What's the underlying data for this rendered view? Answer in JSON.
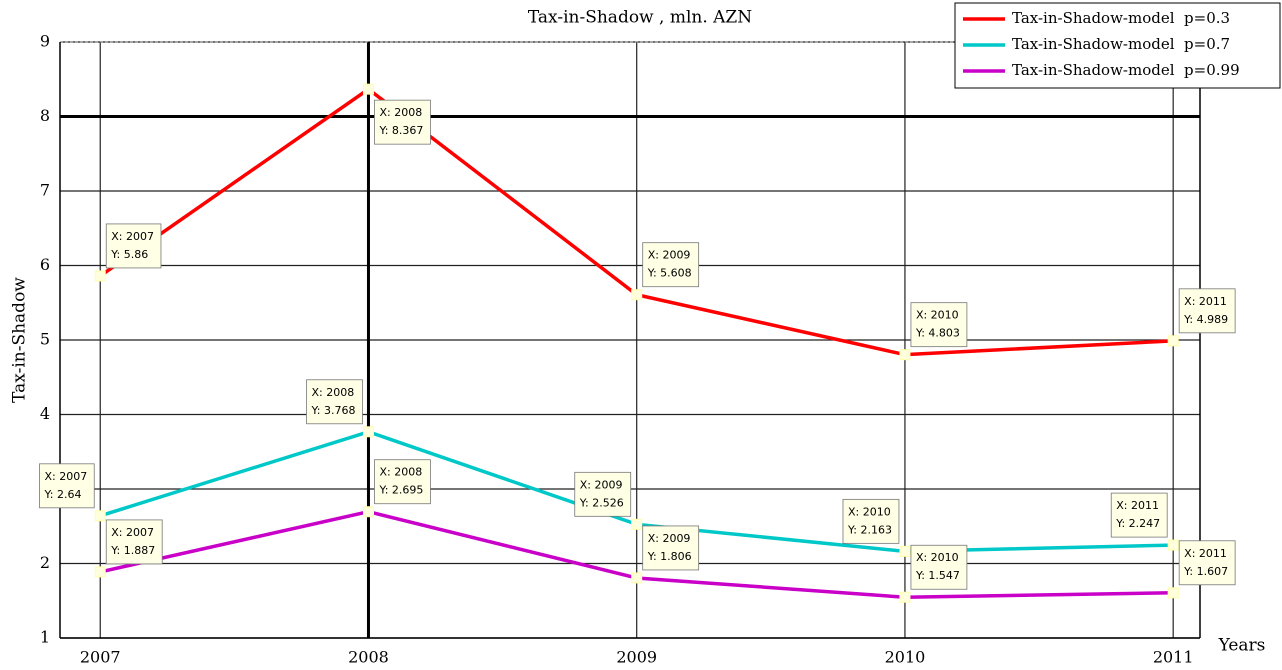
{
  "chart_data": {
    "type": "line",
    "title": "Tax-in-Shadow , mln. AZN",
    "xlabel": "Years",
    "ylabel": "Tax-in-Shadow",
    "x": [
      2007,
      2008,
      2009,
      2010,
      2011
    ],
    "x_labels": [
      "X: 2007",
      "X: 2008",
      "X: 2009",
      "X: 2010",
      "X: 2011"
    ],
    "series": [
      {
        "name": "Tax-in-Shadow-model  p=0.3",
        "color": "#ff0000",
        "values": [
          5.86,
          8.367,
          5.608,
          4.803,
          4.989
        ],
        "value_labels": [
          "Y: 5.86",
          "Y: 8.367",
          "Y: 5.608",
          "Y: 4.803",
          "Y: 4.989"
        ]
      },
      {
        "name": "Tax-in-Shadow-model  p=0.7",
        "color": "#00c8c8",
        "values": [
          2.64,
          3.768,
          2.526,
          2.163,
          2.247
        ],
        "value_labels": [
          "Y: 2.64",
          "Y: 3.768",
          "Y: 2.526",
          "Y: 2.163",
          "Y: 2.247"
        ]
      },
      {
        "name": "Tax-in-Shadow-model  p=0.99",
        "color": "#c800c8",
        "values": [
          1.887,
          2.695,
          1.806,
          1.547,
          1.607
        ],
        "value_labels": [
          "Y: 1.887",
          "Y: 2.695",
          "Y: 1.806",
          "Y: 1.547",
          "Y: 1.607"
        ]
      }
    ],
    "xlim": [
      2006.85,
      2011.1
    ],
    "xticks": [
      2007,
      2008,
      2009,
      2010,
      2011
    ],
    "ylim": [
      1,
      9
    ],
    "yticks": [
      1,
      2,
      3,
      4,
      5,
      6,
      7,
      8,
      9
    ],
    "grid": true,
    "xline": 2008,
    "yline": 8,
    "legend": "top-right"
  }
}
